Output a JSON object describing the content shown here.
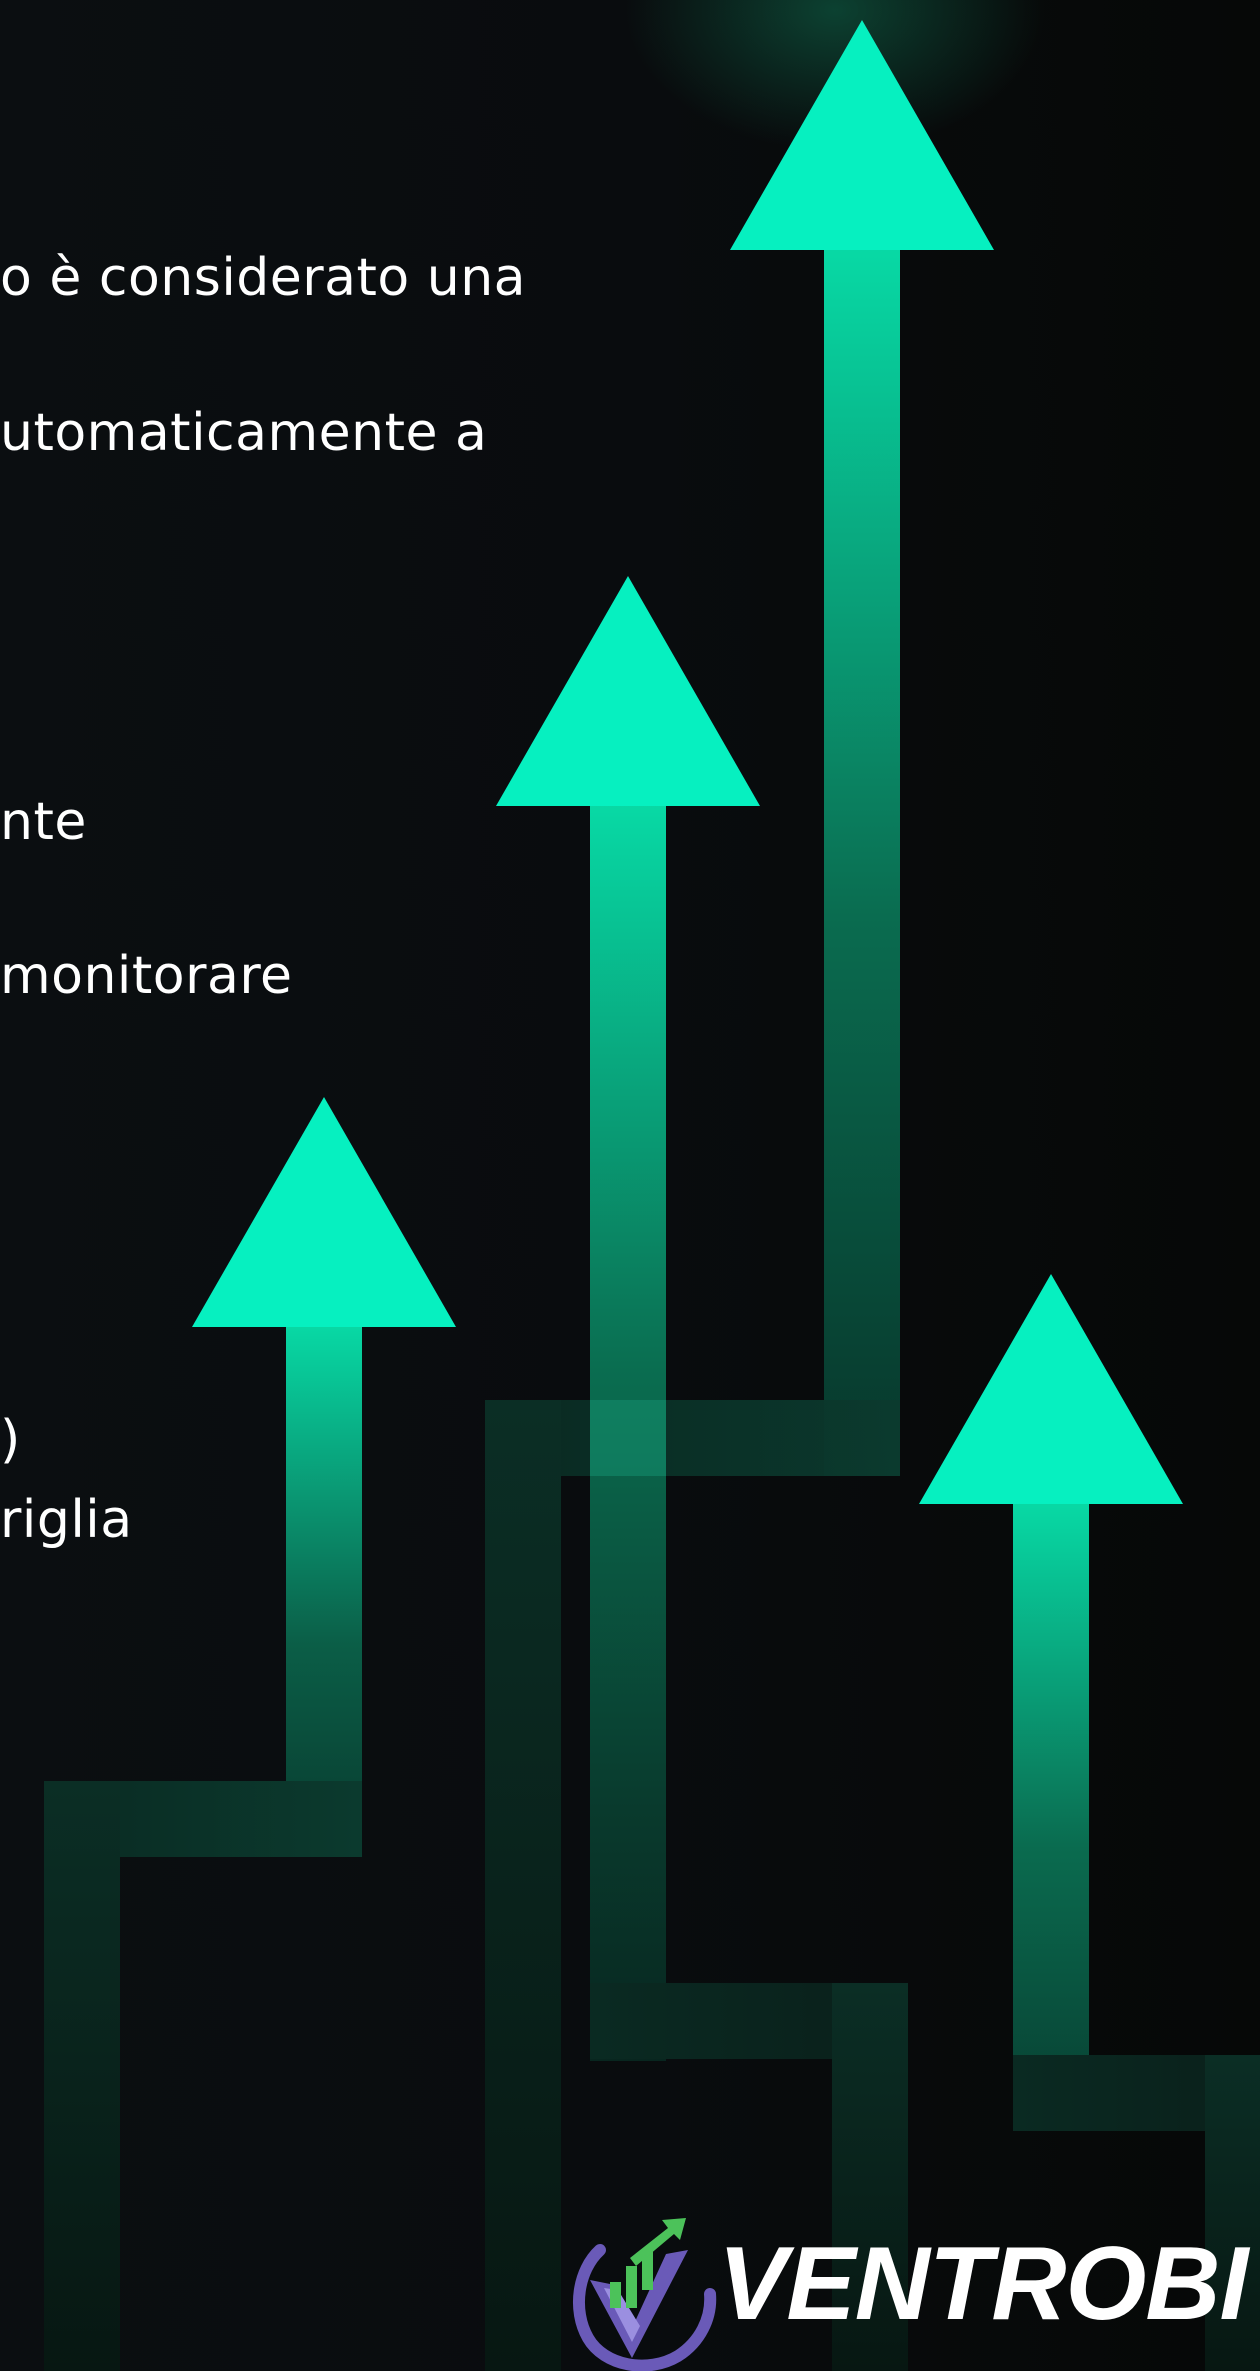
{
  "colors": {
    "arrow_head": "#06f0c0",
    "arrow_stem_top": "#08d9a5",
    "background": "#07090b",
    "logo_purple": "#6a5ab8",
    "logo_green": "#4cc25a"
  },
  "text_lines": [
    "o è considerato una",
    "utomaticamente a",
    "nte",
    "monitorare",
    ")",
    "riglia"
  ],
  "brand": {
    "name": "VENTROBI",
    "logo_icon": "ventrobi-logo-icon"
  },
  "decoration": {
    "arrow_icon": "up-arrow-icon",
    "arrow_count": 4
  }
}
